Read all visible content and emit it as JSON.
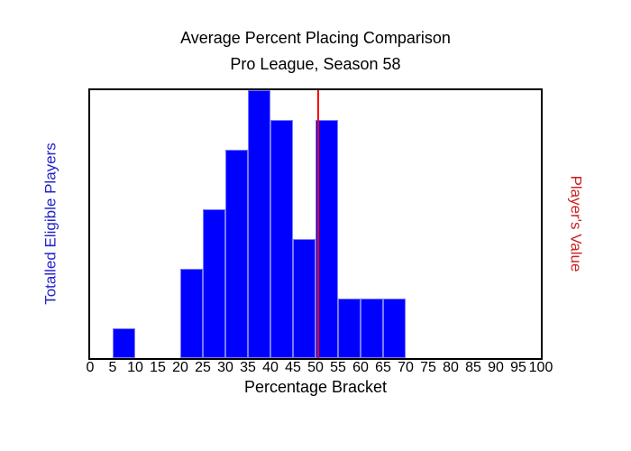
{
  "chart_data": {
    "type": "bar",
    "title": "Average Percent Placing Comparison",
    "subtitle": "Pro League, Season 58",
    "xlabel": "Percentage Bracket",
    "ylabel_left": "Totalled Eligible Players",
    "ylabel_right": "Player's Value",
    "xlim": [
      0,
      100
    ],
    "ylim": [
      0,
      9
    ],
    "x_ticks": [
      0,
      5,
      10,
      15,
      20,
      25,
      30,
      35,
      40,
      45,
      50,
      55,
      60,
      65,
      70,
      75,
      80,
      85,
      90,
      95,
      100
    ],
    "bin_width": 5,
    "bars": [
      {
        "bin_start": 5,
        "bin_end": 10,
        "count": 1
      },
      {
        "bin_start": 20,
        "bin_end": 25,
        "count": 3
      },
      {
        "bin_start": 25,
        "bin_end": 30,
        "count": 5
      },
      {
        "bin_start": 30,
        "bin_end": 35,
        "count": 7
      },
      {
        "bin_start": 35,
        "bin_end": 40,
        "count": 9
      },
      {
        "bin_start": 40,
        "bin_end": 45,
        "count": 8
      },
      {
        "bin_start": 45,
        "bin_end": 50,
        "count": 4
      },
      {
        "bin_start": 50,
        "bin_end": 55,
        "count": 8
      },
      {
        "bin_start": 55,
        "bin_end": 60,
        "count": 2
      },
      {
        "bin_start": 60,
        "bin_end": 65,
        "count": 2
      },
      {
        "bin_start": 65,
        "bin_end": 70,
        "count": 2
      }
    ],
    "player_value_line": {
      "x": 50.6
    },
    "grid": false,
    "legend": "none",
    "colors": {
      "bar_fill": "#0000ff",
      "bar_edge": "#7a7aff",
      "value_line": "#ff0000",
      "left_label": "#2222cc",
      "right_label": "#cc2222",
      "axis": "#000000",
      "text": "#000000"
    }
  }
}
